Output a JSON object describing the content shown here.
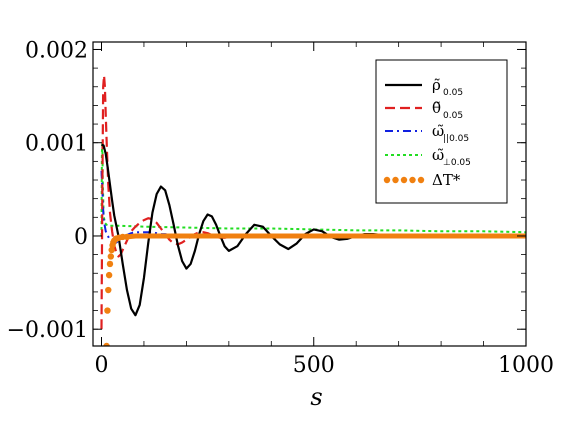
{
  "chart_data": {
    "type": "line",
    "xlabel": "s",
    "ylabel": "",
    "xlim": [
      -20,
      1000
    ],
    "ylim": [
      -0.00118,
      0.00208
    ],
    "x_ticks": [
      {
        "value": 0,
        "label": "0"
      },
      {
        "value": 500,
        "label": "500"
      },
      {
        "value": 1000,
        "label": "1000"
      }
    ],
    "y_ticks": [
      {
        "value": 0.002,
        "label": "0.002"
      },
      {
        "value": 0.001,
        "label": "0.001"
      },
      {
        "value": 0,
        "label": "0"
      },
      {
        "value": -0.001,
        "label": "−0.001"
      }
    ],
    "grid": false,
    "legend_position": "top-right",
    "series": [
      {
        "name": "ρ̃",
        "name_sub": "0.05",
        "color": "#000000",
        "style": "solid",
        "x": [
          0,
          5,
          10,
          15,
          20,
          25,
          30,
          40,
          50,
          60,
          70,
          80,
          90,
          100,
          110,
          120,
          130,
          140,
          150,
          160,
          170,
          180,
          190,
          200,
          210,
          220,
          230,
          240,
          250,
          260,
          270,
          280,
          290,
          300,
          320,
          340,
          360,
          380,
          400,
          420,
          440,
          460,
          480,
          500,
          520,
          540,
          560,
          580,
          600,
          620,
          640,
          660,
          680,
          700,
          720,
          740,
          760,
          780,
          800,
          850,
          900,
          950,
          1000
        ],
        "y": [
          0.00098,
          0.00097,
          0.00088,
          0.00072,
          0.00055,
          0.00038,
          0.00022,
          0.0,
          -0.0003,
          -0.00058,
          -0.00078,
          -0.00085,
          -0.00074,
          -0.00045,
          -8e-05,
          0.00025,
          0.00045,
          0.00053,
          0.00049,
          0.00033,
          0.00012,
          -0.0001,
          -0.00027,
          -0.00035,
          -0.0003,
          -0.00016,
          2e-05,
          0.00016,
          0.00023,
          0.00021,
          0.00012,
          0.0,
          -0.00011,
          -0.00016,
          -0.00011,
          2e-05,
          0.00012,
          0.0001,
          0.0,
          -9e-05,
          -0.00014,
          -8e-05,
          2e-05,
          7e-05,
          5e-05,
          -1e-05,
          -4e-05,
          -3e-05,
          0.0,
          2e-05,
          2e-05,
          1e-05,
          0.0,
          -1e-05,
          -1e-05,
          0.0,
          0.0,
          0.0,
          0.0,
          0.0,
          0.0,
          0.0,
          0.0
        ]
      },
      {
        "name": "θ̃",
        "name_sub": "0.05",
        "color": "#e02020",
        "style": "dashed",
        "x": [
          0,
          2,
          4,
          6,
          8,
          10,
          13,
          16,
          20,
          25,
          30,
          35,
          40,
          45,
          50,
          60,
          70,
          80,
          90,
          100,
          110,
          120,
          130,
          140,
          150,
          160,
          170,
          180,
          190,
          200,
          210,
          220,
          230,
          240,
          250,
          260,
          270,
          280,
          290,
          300,
          320,
          340,
          360,
          380,
          400,
          450,
          500,
          550,
          600,
          700,
          800,
          900,
          1000
        ],
        "y": [
          -0.001,
          0.0005,
          0.0016,
          0.00172,
          0.0016,
          0.0013,
          0.0009,
          0.00055,
          0.00025,
          5e-05,
          -0.0001,
          -0.00018,
          -0.00022,
          -0.0002,
          -0.00015,
          -5e-05,
          5e-05,
          0.0001,
          0.00014,
          0.00017,
          0.00019,
          0.00018,
          0.00014,
          8e-05,
          2e-05,
          -4e-05,
          -8e-05,
          -9e-05,
          -7e-05,
          -4e-05,
          -1e-05,
          2e-05,
          4e-05,
          4e-05,
          3e-05,
          1e-05,
          -1e-05,
          -2e-05,
          -2e-05,
          -1e-05,
          1e-05,
          1e-05,
          0.0,
          0.0,
          0.0,
          0.0,
          0.0,
          0.0,
          0.0,
          0.0,
          0.0,
          0.0,
          0.0
        ]
      },
      {
        "name": "ω̃",
        "name_sub": "||0.05",
        "color": "#1020e0",
        "style": "dashdot",
        "x": [
          0,
          2,
          5,
          10,
          15,
          20,
          25,
          30,
          35,
          40,
          50,
          60,
          70,
          80,
          90,
          100,
          110,
          120,
          130,
          140,
          150,
          160,
          170,
          180,
          190,
          200,
          220,
          240,
          260,
          280,
          300,
          350,
          400,
          500,
          600,
          700,
          800,
          900,
          1000
        ],
        "y": [
          0.0007,
          0.0005,
          0.00018,
          5e-05,
          0.0,
          -4e-05,
          -7e-05,
          -8e-05,
          -7e-05,
          -5e-05,
          -2e-05,
          1e-05,
          3e-05,
          4e-05,
          4e-05,
          4e-05,
          4e-05,
          4e-05,
          3e-05,
          2e-05,
          2e-05,
          1e-05,
          1e-05,
          0.0,
          0.0,
          0.0,
          0.0,
          0.0,
          0.0,
          0.0,
          0.0,
          0.0,
          0.0,
          0.0,
          0.0,
          0.0,
          0.0,
          0.0,
          0.0
        ]
      },
      {
        "name": "ω̃",
        "name_sub": "⊥0.05",
        "color": "#22dd22",
        "style": "dotted",
        "x": [
          0,
          1,
          2,
          3,
          5,
          8,
          12,
          20,
          40,
          100,
          200,
          300,
          400,
          500,
          600,
          700,
          800,
          900,
          1000
        ],
        "y": [
          0.0,
          0.0009,
          0.001,
          0.0006,
          0.00022,
          0.00014,
          0.00012,
          0.00011,
          0.00011,
          0.0001,
          9e-05,
          8e-05,
          8e-05,
          7e-05,
          6e-05,
          6e-05,
          5e-05,
          5e-05,
          4e-05
        ]
      },
      {
        "name": "ΔT*",
        "name_sub": "",
        "color": "#f08010",
        "style": "dots-then-solid",
        "x": [
          12,
          14,
          16,
          18,
          20,
          22,
          24,
          26,
          28,
          30,
          34,
          40,
          50,
          60,
          80,
          100,
          150,
          200,
          300,
          400,
          500,
          600,
          700,
          800,
          900,
          1000
        ],
        "y": [
          -0.00118,
          -0.0008,
          -0.00058,
          -0.00042,
          -0.0003,
          -0.00022,
          -0.00015,
          -0.0001,
          -7e-05,
          -5e-05,
          -3e-05,
          -2e-05,
          -1e-05,
          -1e-05,
          0.0,
          0.0,
          0.0,
          0.0,
          0.0,
          0.0,
          0.0,
          0.0,
          0.0,
          0.0,
          0.0,
          0.0
        ]
      }
    ]
  }
}
